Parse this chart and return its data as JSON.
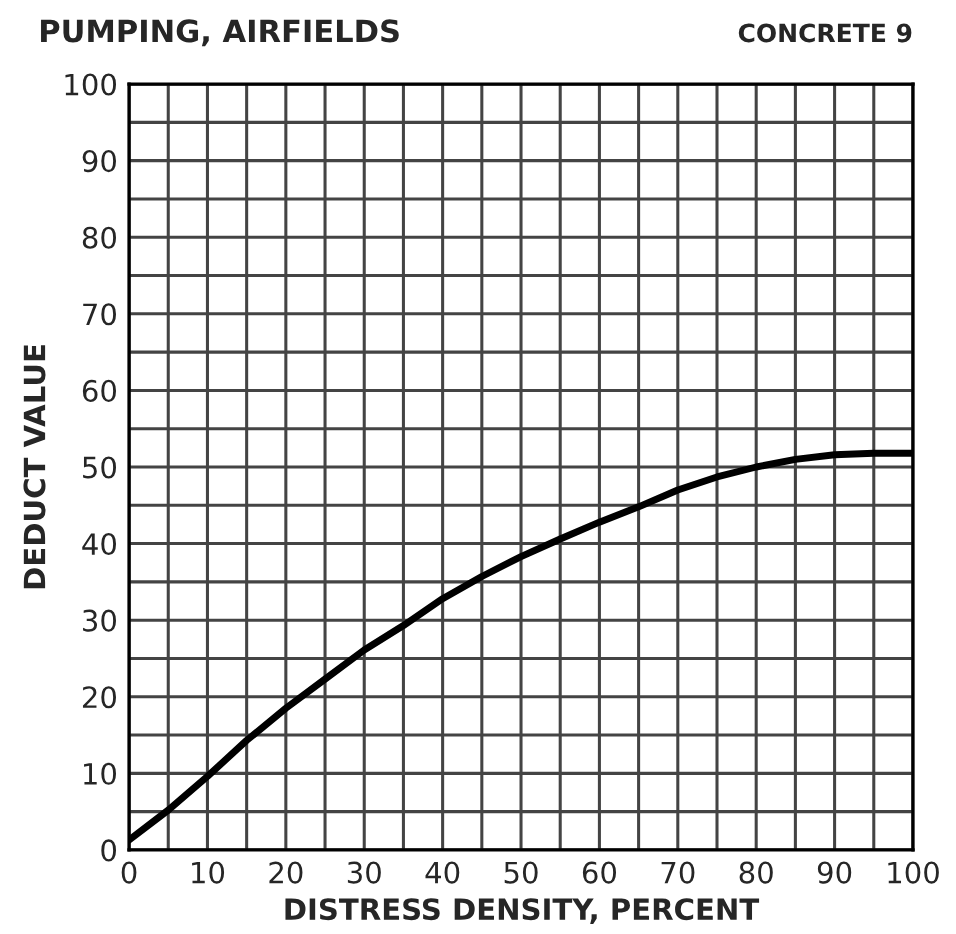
{
  "chart_data": {
    "type": "line",
    "title": "PUMPING, AIRFIELDS",
    "subtitle": "CONCRETE 9",
    "xlabel": "DISTRESS DENSITY, PERCENT",
    "ylabel": "DEDUCT VALUE",
    "x": [
      0,
      5,
      10,
      15,
      20,
      25,
      30,
      35,
      40,
      45,
      50,
      55,
      60,
      65,
      70,
      75,
      80,
      85,
      90,
      95,
      100
    ],
    "series": [
      {
        "color": "#000000",
        "values": [
          1.3,
          5.2,
          9.6,
          14.3,
          18.5,
          22.3,
          26.1,
          29.3,
          32.8,
          35.7,
          38.3,
          40.6,
          42.8,
          44.8,
          47.0,
          48.7,
          50.0,
          51.0,
          51.6,
          51.8,
          51.8
        ]
      }
    ],
    "xlim": [
      0,
      100
    ],
    "ylim": [
      0,
      100
    ],
    "xticks": [
      0,
      10,
      20,
      30,
      40,
      50,
      60,
      70,
      80,
      90,
      100
    ],
    "yticks": [
      0,
      10,
      20,
      30,
      40,
      50,
      60,
      70,
      80,
      90,
      100
    ],
    "grid": true,
    "legend": false,
    "marker": "none",
    "line_style": "solid"
  }
}
